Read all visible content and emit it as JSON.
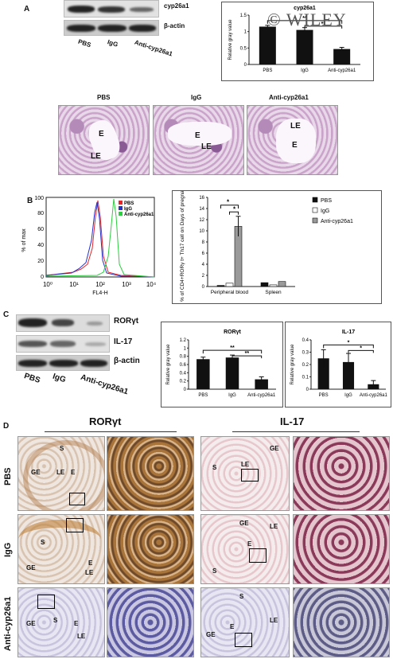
{
  "watermark": "© WILEY",
  "panel_a": {
    "letter": "A",
    "blot_labels": [
      "cyp26a1",
      "β-actin"
    ],
    "lanes": [
      "PBS",
      "IgG",
      "Anti-cyp26a1"
    ],
    "micro_titles": [
      "PBS",
      "IgG",
      "Anti-cyp26a1"
    ],
    "micro_marks": [
      [
        "E",
        "LE"
      ],
      [
        "E",
        "LE"
      ],
      [
        "LE",
        "E"
      ]
    ]
  },
  "panel_b": {
    "letter": "B",
    "flow_ylabel": "% of max",
    "flow_xlabel": "FL4-H",
    "flow_legend": [
      "PBS",
      "IgG",
      "Anti-cyp26a1"
    ],
    "flow_yticks": [
      "0",
      "20",
      "40",
      "60",
      "80",
      "100"
    ],
    "flow_xticks": [
      "10⁰",
      "10¹",
      "10²",
      "10³",
      "10⁴"
    ]
  },
  "panel_c": {
    "letter": "C",
    "blot_labels": [
      "RORγt",
      "IL-17",
      "β-actin"
    ],
    "lanes": [
      "PBS",
      "IgG",
      "Anti-cyp26a1"
    ]
  },
  "panel_d": {
    "letter": "D",
    "col_titles": [
      "RORγt",
      "IL-17"
    ],
    "row_labels": [
      "PBS",
      "IgG",
      "Anti-cyp26a1"
    ],
    "marks": {
      "r1": [
        "S",
        "GE",
        "LE",
        "E",
        "S",
        "LE",
        "GE"
      ],
      "r2": [
        "S",
        "GE",
        "E",
        "LE",
        "GE",
        "LE",
        "E",
        "S"
      ],
      "r3": [
        "GE",
        "S",
        "E",
        "LE",
        "S",
        "GE",
        "E",
        "LE"
      ]
    }
  },
  "colors": {
    "pbs": "#e0262b",
    "igg": "#2431c9",
    "anti": "#2ecc40",
    "bar_dark": "#111111",
    "bar_grey": "#9a9a9a"
  },
  "chart_data": [
    {
      "type": "bar",
      "title": "cyp26a1",
      "ylabel": "Relative gray value",
      "categories": [
        "PBS",
        "IgG",
        "Anti-cyp26a1"
      ],
      "values": [
        1.15,
        1.05,
        0.47
      ],
      "errors": [
        0.04,
        0.07,
        0.05
      ],
      "ylim": [
        0,
        1.5
      ],
      "yticks": [
        "0",
        "0.5",
        "1",
        "1.5"
      ],
      "annotation": "**"
    },
    {
      "type": "bar",
      "ylabel": "% of CD4+RORγ t+ Th17 cell on Days of pregnancy",
      "categories": [
        "Peripheral blood",
        "Spleen"
      ],
      "series": [
        {
          "name": "PBS",
          "values": [
            0.2,
            0.7
          ]
        },
        {
          "name": "IgG",
          "values": [
            0.6,
            0.3
          ]
        },
        {
          "name": "Anti-cyp26a1",
          "values": [
            10.8,
            0.9
          ]
        }
      ],
      "ylim": [
        0,
        16
      ],
      "yticks": [
        "0",
        "2",
        "4",
        "6",
        "8",
        "10",
        "12",
        "14",
        "16"
      ],
      "annotation": "*"
    },
    {
      "type": "bar",
      "title": "RORγt",
      "ylabel": "Relative gray value",
      "categories": [
        "PBS",
        "IgG",
        "Anti-cyp26a1"
      ],
      "values": [
        0.73,
        0.77,
        0.24
      ],
      "errors": [
        0.05,
        0.06,
        0.06
      ],
      "ylim": [
        0,
        1.2
      ],
      "yticks": [
        "0",
        "0.2",
        "0.4",
        "0.6",
        "0.8",
        "1",
        "1.2"
      ],
      "annotation": "**"
    },
    {
      "type": "bar",
      "title": "IL-17",
      "ylabel": "Relative gray value",
      "categories": [
        "PBS",
        "IgG",
        "Anti-cyp26a1"
      ],
      "values": [
        0.25,
        0.22,
        0.04
      ],
      "errors": [
        0.07,
        0.07,
        0.03
      ],
      "ylim": [
        0,
        0.4
      ],
      "yticks": [
        "0",
        "0.1",
        "0.2",
        "0.3",
        "0.4"
      ],
      "annotation": "*"
    }
  ]
}
